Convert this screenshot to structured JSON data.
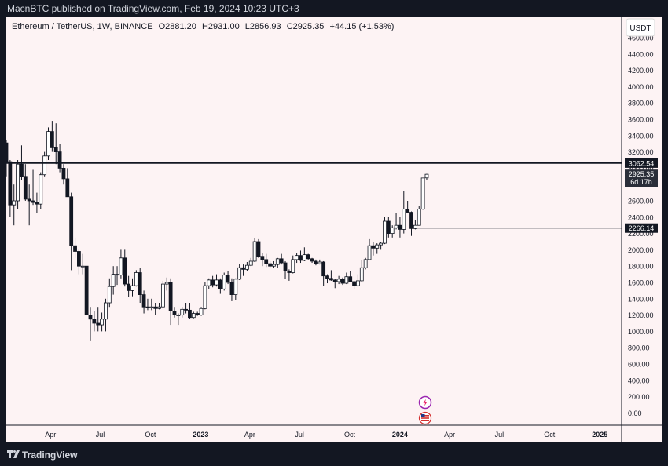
{
  "header": {
    "published_text": "MacnBTC published on TradingView.com, Feb 19, 2024 10:23 UTC+3"
  },
  "legend": {
    "symbol": "Ethereum / TetherUS, 1W, BINANCE",
    "open": "O2881.20",
    "high": "H2931.00",
    "low": "L2856.93",
    "close": "C2925.35",
    "change": "+44.15 (+1.53%)"
  },
  "footer": {
    "brand": "TradingView"
  },
  "colors": {
    "background": "#fdf3f4",
    "candle_up": "#ffffff",
    "candle_down": "#131722",
    "line": "#131722",
    "frame": "#131722"
  },
  "chart_data": {
    "type": "candlestick",
    "currency": "USDT",
    "y_axis": {
      "ylim": [
        -150,
        4850
      ],
      "ticks": [
        0,
        200,
        400,
        600,
        800,
        1000,
        1200,
        1400,
        1600,
        1800,
        2000,
        2200,
        2400,
        2600,
        2800,
        3000,
        3200,
        3400,
        3600,
        3800,
        4000,
        4200,
        4400,
        4600
      ],
      "tick_labels": [
        "0.00",
        "200.00",
        "400.00",
        "600.00",
        "800.00",
        "1000.00",
        "1200.00",
        "1400.00",
        "1600.00",
        "1800.00",
        "2000.00",
        "2200.00",
        "2400.00",
        "2600.00",
        "2800.00",
        "3000.00",
        "3200.00",
        "3400.00",
        "3600.00",
        "3800.00",
        "4000.00",
        "4200.00",
        "4400.00",
        "4600.00"
      ]
    },
    "x_axis": {
      "start": "2022-01-10",
      "end": "2025-02-10",
      "ticks": [
        {
          "date": "2022-04-01",
          "label": "Apr",
          "bold": false
        },
        {
          "date": "2022-07-01",
          "label": "Jul",
          "bold": false
        },
        {
          "date": "2022-10-01",
          "label": "Oct",
          "bold": false
        },
        {
          "date": "2023-01-01",
          "label": "2023",
          "bold": true
        },
        {
          "date": "2023-04-01",
          "label": "Apr",
          "bold": false
        },
        {
          "date": "2023-07-01",
          "label": "Jul",
          "bold": false
        },
        {
          "date": "2023-10-01",
          "label": "Oct",
          "bold": false
        },
        {
          "date": "2024-01-01",
          "label": "2024",
          "bold": true
        },
        {
          "date": "2024-04-01",
          "label": "Apr",
          "bold": false
        },
        {
          "date": "2024-07-01",
          "label": "Jul",
          "bold": false
        },
        {
          "date": "2024-10-01",
          "label": "Oct",
          "bold": false
        },
        {
          "date": "2025-01-01",
          "label": "2025",
          "bold": true
        }
      ]
    },
    "horizontal_lines": [
      {
        "value": 3062.54,
        "label": "3062.54",
        "start": "2022-01-10",
        "style": "thick"
      },
      {
        "value": 2266.14,
        "label": "2266.14",
        "start": "2024-01-22",
        "style": "thin"
      }
    ],
    "last_price": {
      "value": 2925.35,
      "label": "2925.35",
      "countdown": "6d 17h"
    },
    "candles": [
      [
        "2022-01-10",
        3310,
        3340,
        2900,
        3080
      ],
      [
        "2022-01-17",
        3080,
        3100,
        2400,
        2550
      ],
      [
        "2022-01-24",
        2550,
        2800,
        2300,
        2600
      ],
      [
        "2022-01-31",
        2600,
        3100,
        2500,
        3050
      ],
      [
        "2022-02-07",
        3050,
        3280,
        2850,
        2900
      ],
      [
        "2022-02-14",
        2900,
        3050,
        2600,
        2620
      ],
      [
        "2022-02-21",
        2620,
        2800,
        2300,
        2600
      ],
      [
        "2022-02-28",
        2600,
        2980,
        2550,
        2580
      ],
      [
        "2022-03-07",
        2580,
        2700,
        2450,
        2560
      ],
      [
        "2022-03-14",
        2560,
        2950,
        2500,
        2920
      ],
      [
        "2022-03-21",
        2920,
        3200,
        2900,
        3150
      ],
      [
        "2022-03-28",
        3150,
        3500,
        3100,
        3450
      ],
      [
        "2022-04-04",
        3450,
        3580,
        3200,
        3250
      ],
      [
        "2022-04-11",
        3250,
        3550,
        3050,
        3200
      ],
      [
        "2022-04-18",
        3200,
        3300,
        2950,
        3000
      ],
      [
        "2022-04-25",
        3000,
        3050,
        2800,
        2870
      ],
      [
        "2022-05-02",
        2870,
        3000,
        2650,
        2650
      ],
      [
        "2022-05-09",
        2650,
        2700,
        1750,
        2050
      ],
      [
        "2022-05-16",
        2050,
        2150,
        1900,
        1980
      ],
      [
        "2022-05-23",
        1980,
        2000,
        1700,
        1800
      ],
      [
        "2022-05-30",
        1800,
        1950,
        1700,
        1800
      ],
      [
        "2022-06-06",
        1800,
        1800,
        1200,
        1200
      ],
      [
        "2022-06-13",
        1200,
        1300,
        880,
        1150
      ],
      [
        "2022-06-20",
        1150,
        1250,
        1000,
        1100
      ],
      [
        "2022-06-27",
        1100,
        1300,
        1000,
        1080
      ],
      [
        "2022-07-04",
        1080,
        1230,
        1000,
        1150
      ],
      [
        "2022-07-11",
        1150,
        1400,
        1000,
        1350
      ],
      [
        "2022-07-18",
        1350,
        1650,
        1300,
        1550
      ],
      [
        "2022-07-25",
        1550,
        1800,
        1450,
        1700
      ],
      [
        "2022-08-01",
        1700,
        1800,
        1570,
        1690
      ],
      [
        "2022-08-08",
        1690,
        2000,
        1650,
        1900
      ],
      [
        "2022-08-15",
        1900,
        2000,
        1550,
        1580
      ],
      [
        "2022-08-22",
        1580,
        1680,
        1420,
        1500
      ],
      [
        "2022-08-29",
        1500,
        1650,
        1430,
        1560
      ],
      [
        "2022-09-05",
        1560,
        1750,
        1550,
        1720
      ],
      [
        "2022-09-12",
        1720,
        1780,
        1350,
        1450
      ],
      [
        "2022-09-19",
        1450,
        1500,
        1220,
        1300
      ],
      [
        "2022-09-26",
        1300,
        1400,
        1260,
        1290
      ],
      [
        "2022-10-03",
        1290,
        1400,
        1260,
        1300
      ],
      [
        "2022-10-10",
        1300,
        1350,
        1200,
        1280
      ],
      [
        "2022-10-17",
        1280,
        1350,
        1270,
        1300
      ],
      [
        "2022-10-24",
        1300,
        1620,
        1280,
        1580
      ],
      [
        "2022-10-31",
        1580,
        1660,
        1500,
        1600
      ],
      [
        "2022-11-07",
        1600,
        1650,
        1080,
        1250
      ],
      [
        "2022-11-14",
        1250,
        1300,
        1170,
        1200
      ],
      [
        "2022-11-21",
        1200,
        1220,
        1080,
        1200
      ],
      [
        "2022-11-28",
        1200,
        1300,
        1170,
        1270
      ],
      [
        "2022-12-05",
        1270,
        1350,
        1220,
        1260
      ],
      [
        "2022-12-12",
        1260,
        1350,
        1150,
        1170
      ],
      [
        "2022-12-19",
        1170,
        1240,
        1160,
        1220
      ],
      [
        "2022-12-26",
        1220,
        1240,
        1190,
        1200
      ],
      [
        "2023-01-02",
        1200,
        1300,
        1190,
        1280
      ],
      [
        "2023-01-09",
        1280,
        1600,
        1270,
        1560
      ],
      [
        "2023-01-16",
        1560,
        1650,
        1520,
        1630
      ],
      [
        "2023-01-23",
        1630,
        1680,
        1540,
        1570
      ],
      [
        "2023-01-30",
        1570,
        1700,
        1550,
        1630
      ],
      [
        "2023-02-06",
        1630,
        1650,
        1460,
        1520
      ],
      [
        "2023-02-13",
        1520,
        1720,
        1500,
        1690
      ],
      [
        "2023-02-20",
        1690,
        1740,
        1580,
        1600
      ],
      [
        "2023-02-27",
        1600,
        1650,
        1370,
        1450
      ],
      [
        "2023-03-06",
        1450,
        1650,
        1380,
        1640
      ],
      [
        "2023-03-13",
        1640,
        1830,
        1630,
        1780
      ],
      [
        "2023-03-20",
        1780,
        1820,
        1680,
        1760
      ],
      [
        "2023-03-27",
        1760,
        1850,
        1740,
        1810
      ],
      [
        "2023-04-03",
        1810,
        1900,
        1800,
        1860
      ],
      [
        "2023-04-10",
        1860,
        2140,
        1850,
        2100
      ],
      [
        "2023-04-17",
        2100,
        2130,
        1900,
        1920
      ],
      [
        "2023-04-24",
        1920,
        1960,
        1800,
        1880
      ],
      [
        "2023-05-01",
        1880,
        1950,
        1790,
        1830
      ],
      [
        "2023-05-08",
        1830,
        1860,
        1780,
        1800
      ],
      [
        "2023-05-15",
        1800,
        1860,
        1780,
        1820
      ],
      [
        "2023-05-22",
        1820,
        1900,
        1780,
        1890
      ],
      [
        "2023-05-29",
        1890,
        1950,
        1820,
        1840
      ],
      [
        "2023-06-05",
        1840,
        1860,
        1640,
        1740
      ],
      [
        "2023-06-12",
        1740,
        1760,
        1620,
        1720
      ],
      [
        "2023-06-19",
        1720,
        1930,
        1710,
        1880
      ],
      [
        "2023-06-26",
        1880,
        1960,
        1840,
        1930
      ],
      [
        "2023-07-03",
        1930,
        1990,
        1840,
        1870
      ],
      [
        "2023-07-10",
        1870,
        2030,
        1860,
        1940
      ],
      [
        "2023-07-17",
        1940,
        1950,
        1880,
        1890
      ],
      [
        "2023-07-24",
        1890,
        1900,
        1840,
        1860
      ],
      [
        "2023-07-31",
        1860,
        1880,
        1810,
        1830
      ],
      [
        "2023-08-07",
        1830,
        1880,
        1820,
        1850
      ],
      [
        "2023-08-14",
        1850,
        1860,
        1560,
        1680
      ],
      [
        "2023-08-21",
        1680,
        1700,
        1590,
        1650
      ],
      [
        "2023-08-28",
        1650,
        1750,
        1620,
        1630
      ],
      [
        "2023-09-04",
        1630,
        1640,
        1530,
        1610
      ],
      [
        "2023-09-11",
        1610,
        1680,
        1580,
        1640
      ],
      [
        "2023-09-18",
        1640,
        1660,
        1570,
        1590
      ],
      [
        "2023-09-25",
        1590,
        1720,
        1580,
        1670
      ],
      [
        "2023-10-02",
        1670,
        1740,
        1600,
        1610
      ],
      [
        "2023-10-09",
        1610,
        1620,
        1520,
        1560
      ],
      [
        "2023-10-16",
        1560,
        1700,
        1550,
        1620
      ],
      [
        "2023-10-23",
        1620,
        1870,
        1610,
        1780
      ],
      [
        "2023-10-30",
        1780,
        1900,
        1760,
        1880
      ],
      [
        "2023-11-06",
        1880,
        2130,
        1880,
        2050
      ],
      [
        "2023-11-13",
        2050,
        2100,
        1930,
        2020
      ],
      [
        "2023-11-20",
        2020,
        2080,
        1950,
        2060
      ],
      [
        "2023-11-27",
        2060,
        2100,
        2000,
        2080
      ],
      [
        "2023-12-04",
        2080,
        2400,
        2070,
        2350
      ],
      [
        "2023-12-11",
        2350,
        2400,
        2150,
        2200
      ],
      [
        "2023-12-18",
        2200,
        2300,
        2150,
        2270
      ],
      [
        "2023-12-25",
        2270,
        2450,
        2250,
        2300
      ],
      [
        "2024-01-01",
        2300,
        2400,
        2150,
        2250
      ],
      [
        "2024-01-08",
        2250,
        2720,
        2200,
        2500
      ],
      [
        "2024-01-15",
        2500,
        2600,
        2450,
        2460
      ],
      [
        "2024-01-22",
        2460,
        2470,
        2170,
        2260
      ],
      [
        "2024-01-29",
        2260,
        2360,
        2250,
        2300
      ],
      [
        "2024-02-05",
        2300,
        2540,
        2300,
        2500
      ],
      [
        "2024-02-12",
        2500,
        2880,
        2490,
        2880
      ],
      [
        "2024-02-19",
        2881.2,
        2931,
        2856.93,
        2925.35
      ]
    ]
  }
}
